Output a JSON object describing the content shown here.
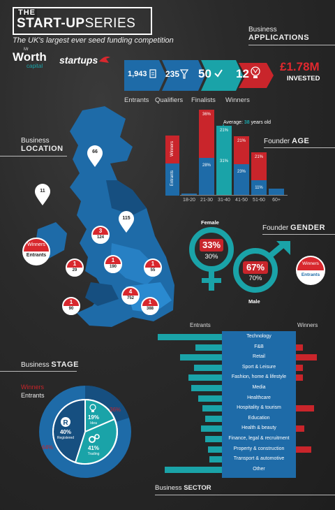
{
  "header": {
    "logo_the": "THE",
    "logo_start": "START-UP",
    "logo_series": "SERIES",
    "tagline": "The UK's largest ever seed funding competition",
    "sponsor1_small": "Mr",
    "sponsor1": "Worth",
    "sponsor1_sub": "capital",
    "sponsor2": "startups"
  },
  "applications": {
    "title_small": "Business",
    "title": "APPLICATIONS",
    "stages": [
      {
        "value": "1,943",
        "label": "Entrants",
        "icon": "document-icon"
      },
      {
        "value": "235",
        "label": "Qualifiers",
        "icon": "funnel-icon"
      },
      {
        "value": "50",
        "label": "Finalists",
        "icon": "check-icon"
      },
      {
        "value": "12",
        "label": "Winners",
        "icon": "trophy-icon"
      }
    ],
    "invested_value": "£1.78M",
    "invested_label": "INVESTED"
  },
  "location": {
    "title_small": "Business",
    "title": "LOCATION",
    "legend_winners": "Winners",
    "legend_entrants": "Entrants",
    "entrant_only_pins": [
      "66",
      "11",
      "115"
    ],
    "winner_pins": [
      {
        "winners": "3",
        "entrants": "124"
      },
      {
        "winners": "1",
        "entrants": "29"
      },
      {
        "winners": "1",
        "entrants": "190"
      },
      {
        "winners": "1",
        "entrants": "55"
      },
      {
        "winners": "4",
        "entrants": "752"
      },
      {
        "winners": "1",
        "entrants": "90"
      },
      {
        "winners": "1",
        "entrants": "388"
      }
    ]
  },
  "age": {
    "title_small": "Founder",
    "title": "AGE",
    "average_label": "Average:",
    "average_value": "38",
    "average_suffix": "years old",
    "legend_winners": "Winners",
    "legend_entrants": "Entrants",
    "categories": [
      "18-20",
      "21-30",
      "31-40",
      "41-50",
      "51-60",
      "60+"
    ],
    "winners_pct": [
      "",
      "36%",
      "21%",
      "21%",
      "21%",
      ""
    ],
    "entrants_pct": [
      "",
      "28%",
      "31%",
      "23%",
      "11%",
      ""
    ],
    "winners_values": [
      0,
      36,
      21,
      21,
      21,
      0
    ],
    "entrants_values": [
      1,
      28,
      31,
      23,
      11,
      5
    ]
  },
  "gender": {
    "title_small": "Founder",
    "title": "GENDER",
    "female_label": "Female",
    "female_winners": "33%",
    "female_entrants": "30%",
    "male_label": "Male",
    "male_winners": "67%",
    "male_entrants": "70%",
    "legend_winners": "Winners",
    "legend_entrants": "Entrants"
  },
  "stage": {
    "title_small": "Business",
    "title": "STAGE",
    "legend_winners": "Winners",
    "legend_entrants": "Entrants",
    "inner": [
      {
        "pct": "19%",
        "label": "Idea",
        "icon": "lightbulb-icon"
      },
      {
        "pct": "40%",
        "label": "Registered",
        "icon": "registered-icon"
      },
      {
        "pct": "41%",
        "label": "Trading",
        "icon": "gears-icon"
      }
    ],
    "outer_winners_pct": "36%",
    "outer_entrants_pct": "64%"
  },
  "sector": {
    "title_small": "Business",
    "title": "SECTOR",
    "entrants_label": "Entrants",
    "winners_label": "Winners",
    "items": [
      {
        "name": "Technology",
        "entrants": 92,
        "winners": 0
      },
      {
        "name": "F&B",
        "entrants": 38,
        "winners": 10
      },
      {
        "name": "Retail",
        "entrants": 60,
        "winners": 30
      },
      {
        "name": "Sport & Leisure",
        "entrants": 40,
        "winners": 10
      },
      {
        "name": "Fashion, home & lifestyle",
        "entrants": 48,
        "winners": 10
      },
      {
        "name": "Media",
        "entrants": 44,
        "winners": 0
      },
      {
        "name": "Healthcare",
        "entrants": 34,
        "winners": 0
      },
      {
        "name": "Hospitality & tourism",
        "entrants": 28,
        "winners": 26
      },
      {
        "name": "Education",
        "entrants": 24,
        "winners": 0
      },
      {
        "name": "Health & beauty",
        "entrants": 30,
        "winners": 12
      },
      {
        "name": "Finance, legal & recruitment",
        "entrants": 24,
        "winners": 0
      },
      {
        "name": "Property & construction",
        "entrants": 20,
        "winners": 22
      },
      {
        "name": "Transport & automotive",
        "entrants": 18,
        "winners": 0
      },
      {
        "name": "Other",
        "entrants": 82,
        "winners": 0
      }
    ]
  },
  "colors": {
    "blue": "#1e6ba8",
    "teal": "#1aa3a8",
    "red": "#c9252b",
    "dark_blue": "#164f80"
  }
}
